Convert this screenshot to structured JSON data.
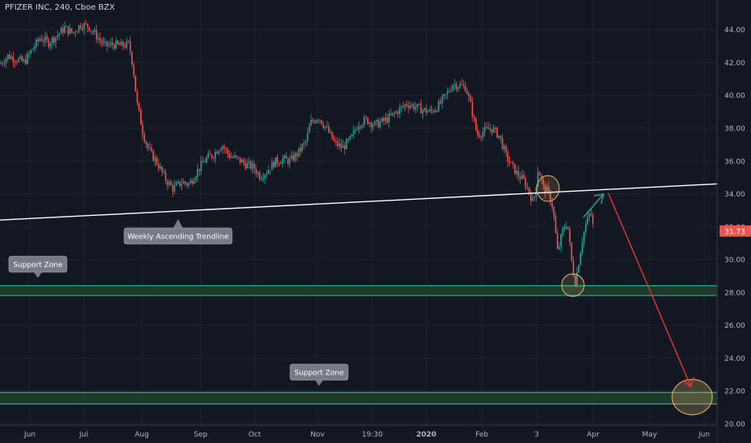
{
  "chart_data": {
    "type": "candlestick",
    "title": "PFIZER INC, 240, Cboe BZX",
    "y_ticks": [
      20,
      22,
      24,
      26,
      28,
      30,
      32,
      34,
      36,
      38,
      40,
      42,
      44
    ],
    "y_tick_labels": [
      "20.00",
      "22.00",
      "24.00",
      "26.00",
      "28.00",
      "30.00",
      "32.00",
      "34.00",
      "36.00",
      "38.00",
      "40.00",
      "42.00",
      "44.00"
    ],
    "ylim": [
      19.9,
      45.8
    ],
    "x_ticks": [
      "Jun",
      "Jul",
      "Aug",
      "Sep",
      "Oct",
      "Nov",
      "19:30",
      "2020",
      "Feb",
      "3",
      "Apr",
      "May",
      "Jun"
    ],
    "last_price": 31.73,
    "last_price_label": "31.73",
    "trendline": {
      "label": "Weekly Ascending Trendline",
      "from": 32.4,
      "to": 34.6
    },
    "support_zones": [
      {
        "label": "Support Zone",
        "low": 27.8,
        "high": 28.4
      },
      {
        "label": "Support Zone",
        "low": 21.2,
        "high": 21.9
      }
    ],
    "price_path": [
      [
        0,
        41.9
      ],
      [
        10,
        42.4
      ],
      [
        20,
        42.2
      ],
      [
        30,
        42.0
      ],
      [
        40,
        42.8
      ],
      [
        50,
        43.5
      ],
      [
        60,
        43.2
      ],
      [
        70,
        43.6
      ],
      [
        80,
        44.1
      ],
      [
        90,
        43.8
      ],
      [
        100,
        44.3
      ],
      [
        110,
        44.2
      ],
      [
        120,
        43.6
      ],
      [
        130,
        43.0
      ],
      [
        140,
        43.1
      ],
      [
        150,
        43.0
      ],
      [
        160,
        43.1
      ],
      [
        165,
        41.8
      ],
      [
        170,
        39.5
      ],
      [
        178,
        37.6
      ],
      [
        185,
        36.6
      ],
      [
        195,
        35.9
      ],
      [
        205,
        34.9
      ],
      [
        215,
        34.3
      ],
      [
        225,
        34.7
      ],
      [
        235,
        34.6
      ],
      [
        245,
        35.4
      ],
      [
        255,
        36.1
      ],
      [
        265,
        36.4
      ],
      [
        275,
        37.0
      ],
      [
        285,
        36.3
      ],
      [
        295,
        36.1
      ],
      [
        305,
        35.8
      ],
      [
        315,
        35.6
      ],
      [
        322,
        35.1
      ],
      [
        330,
        35.3
      ],
      [
        340,
        35.9
      ],
      [
        350,
        36.1
      ],
      [
        360,
        36.0
      ],
      [
        370,
        36.5
      ],
      [
        380,
        37.2
      ],
      [
        385,
        38.3
      ],
      [
        395,
        38.7
      ],
      [
        405,
        38.0
      ],
      [
        415,
        37.1
      ],
      [
        425,
        36.8
      ],
      [
        435,
        37.3
      ],
      [
        445,
        38.3
      ],
      [
        455,
        38.5
      ],
      [
        465,
        38.2
      ],
      [
        475,
        38.4
      ],
      [
        485,
        38.7
      ],
      [
        495,
        39.1
      ],
      [
        505,
        39.5
      ],
      [
        515,
        39.3
      ],
      [
        525,
        39.1
      ],
      [
        535,
        39.0
      ],
      [
        545,
        39.4
      ],
      [
        555,
        40.1
      ],
      [
        562,
        40.7
      ],
      [
        570,
        40.6
      ],
      [
        578,
        40.5
      ],
      [
        585,
        39.2
      ],
      [
        592,
        37.6
      ],
      [
        600,
        37.8
      ],
      [
        610,
        38.0
      ],
      [
        620,
        37.5
      ],
      [
        628,
        36.3
      ],
      [
        635,
        35.7
      ],
      [
        642,
        35.2
      ],
      [
        650,
        34.8
      ],
      [
        656,
        34.2
      ],
      [
        662,
        33.4
      ],
      [
        668,
        35.6
      ],
      [
        674,
        34.4
      ],
      [
        680,
        34.1
      ],
      [
        686,
        33.2
      ],
      [
        692,
        30.4
      ],
      [
        698,
        31.7
      ],
      [
        704,
        32.3
      ],
      [
        710,
        29.6
      ],
      [
        714,
        28.6
      ],
      [
        718,
        29.8
      ],
      [
        722,
        31.1
      ],
      [
        728,
        32.3
      ],
      [
        733,
        32.9
      ],
      [
        737,
        31.73
      ]
    ],
    "annotations": [
      "green-up-arrow",
      "red-down-arrow",
      "reversal-circles"
    ],
    "colors": {
      "up": "#26a69a",
      "down": "#ef5350",
      "zone_fill": "#1e3d2b",
      "zone_line": "#2ab098",
      "circle": "#e8b66b",
      "text": "#b2b5be"
    }
  }
}
